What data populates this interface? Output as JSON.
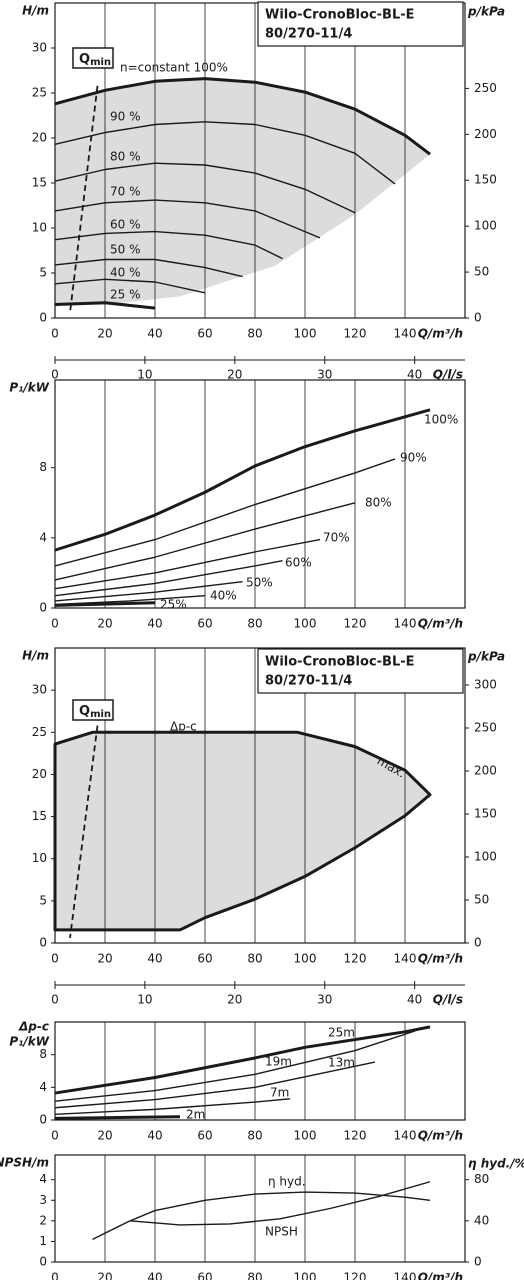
{
  "chart_data": [
    {
      "type": "line",
      "title": "Wilo-CronoBloc-BL-E",
      "subtitle": "80/270-11/4",
      "x_label": "Q/m³/h",
      "y_label": "H/m",
      "y2_label": "p/kPa",
      "xlim": [
        0,
        164
      ],
      "xticks": [
        0,
        20,
        40,
        60,
        80,
        100,
        120,
        140
      ],
      "ylim": [
        0,
        35
      ],
      "yticks": [
        0,
        5,
        10,
        15,
        20,
        25,
        30
      ],
      "y2lim": [
        0,
        343
      ],
      "y2ticks": [
        0,
        50,
        100,
        150,
        200,
        250
      ],
      "grid": true,
      "line_color": "#1a1a1a",
      "region": {
        "color": "#dcdcdc",
        "outline": false,
        "x": [
          0,
          20,
          40,
          60,
          80,
          100,
          120,
          140,
          150,
          120,
          88,
          50,
          20,
          0
        ],
        "y": [
          23.8,
          25.3,
          26.3,
          26.6,
          26.2,
          25.1,
          23.2,
          20.3,
          18.2,
          11.5,
          5.8,
          2.4,
          1.5,
          1.3
        ]
      },
      "qmin": {
        "label": "Q",
        "sub": "min",
        "x": [
          17,
          6
        ],
        "y": [
          25.8,
          0.6
        ]
      },
      "series": [
        {
          "name": "n=constant 100%",
          "style": "bold",
          "x": [
            0,
            20,
            40,
            60,
            80,
            100,
            120,
            140,
            150
          ],
          "values": [
            23.8,
            25.3,
            26.3,
            26.6,
            26.2,
            25.1,
            23.2,
            20.3,
            18.2
          ]
        },
        {
          "name": "90 %",
          "x": [
            0,
            20,
            40,
            60,
            80,
            100,
            120,
            136
          ],
          "values": [
            19.3,
            20.6,
            21.5,
            21.8,
            21.5,
            20.3,
            18.3,
            14.9
          ]
        },
        {
          "name": "80 %",
          "x": [
            0,
            20,
            40,
            60,
            80,
            100,
            120
          ],
          "values": [
            15.2,
            16.5,
            17.2,
            17,
            16.1,
            14.3,
            11.7
          ]
        },
        {
          "name": "70 %",
          "x": [
            0,
            20,
            40,
            60,
            80,
            106
          ],
          "values": [
            11.9,
            12.8,
            13.1,
            12.8,
            11.9,
            8.9
          ]
        },
        {
          "name": "60 %",
          "x": [
            0,
            20,
            40,
            60,
            80,
            91
          ],
          "values": [
            8.7,
            9.4,
            9.6,
            9.2,
            8.1,
            6.6
          ]
        },
        {
          "name": "50 %",
          "x": [
            0,
            20,
            40,
            60,
            75
          ],
          "values": [
            5.9,
            6.5,
            6.5,
            5.6,
            4.6
          ]
        },
        {
          "name": "40 %",
          "x": [
            0,
            20,
            40,
            60
          ],
          "values": [
            3.8,
            4.3,
            4.0,
            2.8
          ]
        },
        {
          "name": "25 %",
          "style": "bold",
          "x": [
            0,
            20,
            40
          ],
          "values": [
            1.5,
            1.7,
            1.1
          ]
        }
      ]
    },
    {
      "type": "axis",
      "x_label": "Q/l/s",
      "xlim": [
        0,
        45.6
      ],
      "xticks": [
        0,
        10,
        20,
        30,
        40
      ]
    },
    {
      "type": "line",
      "x_label": "Q/m³/h",
      "y_label": "P₁/kW",
      "xlim": [
        0,
        164
      ],
      "xticks": [
        0,
        20,
        40,
        60,
        80,
        100,
        120,
        140
      ],
      "ylim": [
        0,
        13
      ],
      "yticks": [
        0,
        4,
        8
      ],
      "grid": true,
      "line_color": "#1a1a1a",
      "series": [
        {
          "name": "100%",
          "style": "bold",
          "x": [
            0,
            20,
            40,
            60,
            80,
            100,
            120,
            140,
            150
          ],
          "values": [
            3.3,
            4.2,
            5.3,
            6.6,
            8.1,
            9.2,
            10.1,
            10.9,
            11.3
          ]
        },
        {
          "name": "90%",
          "x": [
            0,
            40,
            80,
            120,
            136
          ],
          "values": [
            2.4,
            3.9,
            5.9,
            7.7,
            8.5
          ]
        },
        {
          "name": "80%",
          "x": [
            0,
            40,
            80,
            120
          ],
          "values": [
            1.6,
            2.9,
            4.5,
            6.0
          ]
        },
        {
          "name": "70%",
          "x": [
            0,
            40,
            80,
            106
          ],
          "values": [
            1.1,
            2.0,
            3.2,
            3.9
          ]
        },
        {
          "name": "60%",
          "x": [
            0,
            40,
            80,
            91
          ],
          "values": [
            0.7,
            1.4,
            2.4,
            2.7
          ]
        },
        {
          "name": "50%",
          "x": [
            0,
            40,
            75
          ],
          "values": [
            0.4,
            0.9,
            1.5
          ]
        },
        {
          "name": "40%",
          "x": [
            0,
            30,
            60
          ],
          "values": [
            0.2,
            0.4,
            0.7
          ]
        },
        {
          "name": "25%",
          "style": "bold",
          "x": [
            0,
            40
          ],
          "values": [
            0.15,
            0.3
          ]
        }
      ]
    },
    {
      "type": "line",
      "title": "Wilo-CronoBloc-BL-E",
      "subtitle": "80/270-11/4",
      "x_label": "Q/m³/h",
      "y_label": "H/m",
      "y2_label": "p/kPa",
      "xlim": [
        0,
        164
      ],
      "xticks": [
        0,
        20,
        40,
        60,
        80,
        100,
        120,
        140
      ],
      "ylim": [
        0,
        35
      ],
      "yticks": [
        0,
        5,
        10,
        15,
        20,
        25,
        30
      ],
      "y2lim": [
        0,
        343
      ],
      "y2ticks": [
        0,
        50,
        100,
        150,
        200,
        250,
        300
      ],
      "grid": true,
      "line_color": "#1a1a1a",
      "region": {
        "color": "#dcdcdc",
        "outline": true,
        "x": [
          0,
          15,
          97,
          120,
          140,
          150,
          140,
          120,
          100,
          80,
          60,
          50,
          0
        ],
        "y": [
          23.6,
          25,
          25,
          23.3,
          20.5,
          17.6,
          15.1,
          11.3,
          7.9,
          5.2,
          3.0,
          1.55,
          1.55
        ]
      },
      "annotations": [
        "Δp-c",
        "max."
      ],
      "qmin": {
        "label": "Q",
        "sub": "min",
        "x": [
          17,
          6
        ],
        "y": [
          25.8,
          0.6
        ]
      },
      "series": []
    },
    {
      "type": "axis",
      "x_label": "Q/l/s",
      "xlim": [
        0,
        45.6
      ],
      "xticks": [
        0,
        10,
        20,
        30,
        40
      ]
    },
    {
      "type": "line",
      "x_label": "Q/m³/h",
      "y_label_note": "Δp-c",
      "y_label": "P₁/kW",
      "xlim": [
        0,
        164
      ],
      "xticks": [
        0,
        20,
        40,
        60,
        80,
        100,
        120,
        140
      ],
      "ylim": [
        0,
        12
      ],
      "yticks": [
        0,
        4,
        8
      ],
      "grid": true,
      "line_color": "#1a1a1a",
      "series": [
        {
          "name": "25m",
          "style": "bold",
          "x": [
            0,
            40,
            80,
            100,
            140,
            150
          ],
          "values": [
            3.3,
            5.2,
            7.6,
            8.9,
            10.8,
            11.4
          ]
        },
        {
          "name": "19m",
          "x": [
            0,
            40,
            80,
            120,
            144
          ],
          "values": [
            2.3,
            3.6,
            5.6,
            8.5,
            10.9
          ]
        },
        {
          "name": "13m",
          "x": [
            0,
            40,
            80,
            128
          ],
          "values": [
            1.5,
            2.5,
            4.0,
            7.1
          ]
        },
        {
          "name": "7m",
          "x": [
            0,
            40,
            80,
            94
          ],
          "values": [
            0.7,
            1.3,
            2.2,
            2.6
          ]
        },
        {
          "name": "2m",
          "style": "bold",
          "x": [
            0,
            50
          ],
          "values": [
            0.2,
            0.4
          ]
        }
      ]
    },
    {
      "type": "line",
      "x_label": "Q/m³/h",
      "y_label": "NPSH/m",
      "y2_label": "η hyd./%",
      "xlim": [
        0,
        164
      ],
      "xticks": [
        0,
        20,
        40,
        60,
        80,
        100,
        120,
        140
      ],
      "ylim": [
        0,
        5.2
      ],
      "yticks": [
        0,
        1,
        2,
        3,
        4
      ],
      "y2lim": [
        0,
        104
      ],
      "y2ticks": [
        0,
        40,
        80
      ],
      "grid": true,
      "line_color": "#1a1a1a",
      "series": [
        {
          "name": "η hyd.",
          "axis": "y2",
          "x": [
            15,
            30,
            40,
            60,
            80,
            100,
            120,
            140,
            150
          ],
          "values": [
            22,
            40,
            50,
            60,
            66,
            68,
            67,
            63,
            60
          ]
        },
        {
          "name": "NPSH",
          "x": [
            30,
            50,
            70,
            90,
            110,
            130,
            150
          ],
          "values": [
            2.0,
            1.8,
            1.85,
            2.1,
            2.6,
            3.2,
            3.9
          ]
        }
      ]
    }
  ]
}
